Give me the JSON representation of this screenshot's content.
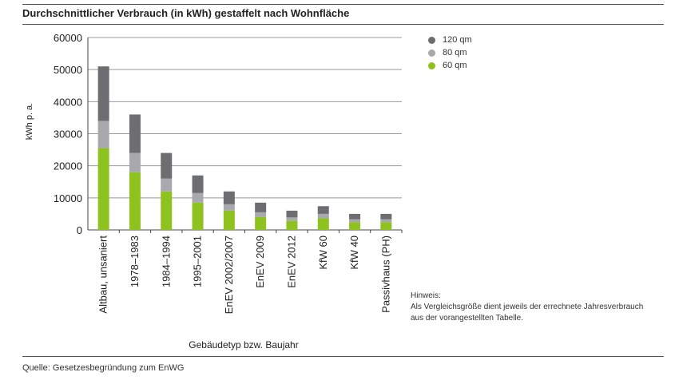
{
  "title": "Durchschnittlicher Verbrauch (in kWh) gestaffelt nach Wohnfläche",
  "source": "Quelle: Gesetzesbegründung zum EnWG",
  "note": {
    "title": "Hinweis:",
    "lines": [
      "Als Vergleichsgröße dient jeweils der errechnete Jahresverbrauch",
      "aus der vorangestellten Tabelle."
    ]
  },
  "colors": {
    "s120": "#6d6e71",
    "s80": "#a7a9ac",
    "s60": "#8dc21f",
    "grid": "#999999",
    "axis": "#444444"
  },
  "chart_data": {
    "type": "bar",
    "stacked": true,
    "xlabel": "Gebäudetyp bzw. Baujahr",
    "ylabel": "kWh p. a.",
    "ylim": [
      0,
      60000
    ],
    "yticks": [
      0,
      10000,
      20000,
      30000,
      40000,
      50000,
      60000
    ],
    "grid": true,
    "legend_position": "top-right",
    "categories": [
      "Altbau, unsaniert",
      "1978–1983",
      "1984–1994",
      "1995–2001",
      "EnEV 2002/2007",
      "EnEV 2009",
      "EnEV 2012",
      "KfW 60",
      "KfW 40",
      "Passivhaus (PH)"
    ],
    "series": [
      {
        "name": "60 qm",
        "values": [
          25500,
          18000,
          12000,
          8500,
          6000,
          4000,
          2800,
          3600,
          2400,
          2400
        ]
      },
      {
        "name": "80 qm",
        "values": [
          8500,
          6000,
          4000,
          3000,
          2000,
          1500,
          1100,
          1400,
          900,
          900
        ]
      },
      {
        "name": "120 qm",
        "values": [
          17000,
          12000,
          8000,
          5500,
          4000,
          3000,
          2100,
          2400,
          1700,
          1700
        ]
      }
    ],
    "legend_order": [
      "120 qm",
      "80 qm",
      "60 qm"
    ]
  }
}
